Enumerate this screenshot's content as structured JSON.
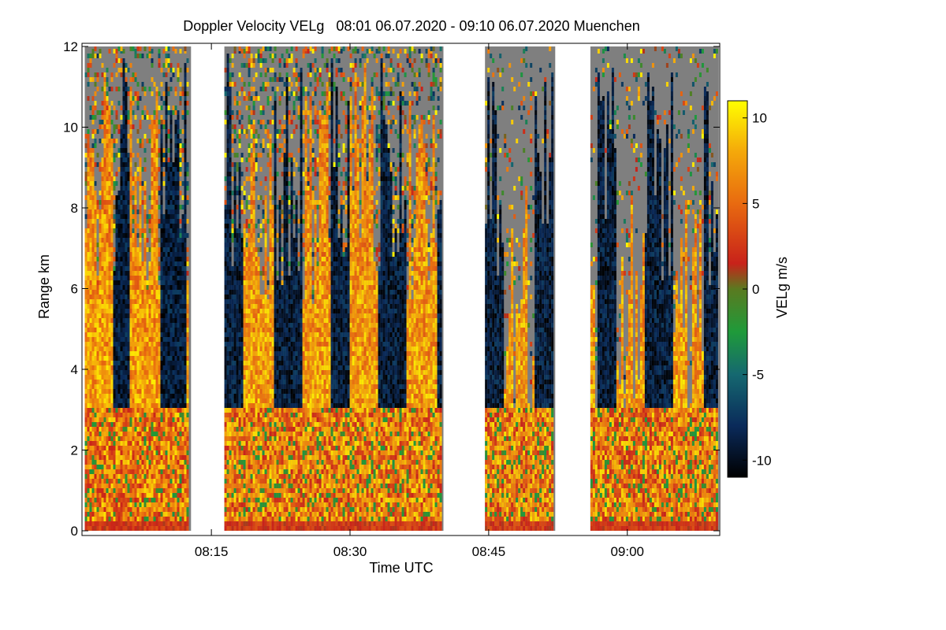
{
  "chart_data": {
    "type": "heatmap",
    "title": "Doppler Velocity VELg   08:01 06.07.2020 - 09:10 06.07.2020 Muenchen",
    "xlabel": "Time UTC",
    "ylabel": "Range km",
    "x_range_minutes_utc": [
      481,
      550
    ],
    "y_range_km": [
      0,
      12
    ],
    "x_ticks": [
      {
        "minute": 495,
        "label": "08:15"
      },
      {
        "minute": 510,
        "label": "08:30"
      },
      {
        "minute": 525,
        "label": "08:45"
      },
      {
        "minute": 540,
        "label": "09:00"
      }
    ],
    "y_ticks": [
      {
        "value": 0,
        "label": "0"
      },
      {
        "value": 2,
        "label": "2"
      },
      {
        "value": 4,
        "label": "4"
      },
      {
        "value": 6,
        "label": "6"
      },
      {
        "value": 8,
        "label": "8"
      },
      {
        "value": 10,
        "label": "10"
      },
      {
        "value": 12,
        "label": "12"
      }
    ],
    "data_blocks_minutes": [
      [
        481.3,
        492.8
      ],
      [
        496.4,
        520.1
      ],
      [
        524.6,
        532.2
      ],
      [
        536.0,
        549.9
      ]
    ],
    "description_of_pattern": "Alternating positive (yellow/orange) and negative (blue) velocity streaks; reds/greens near ground below 3 km; grey noise aloft",
    "colorbar": {
      "label": "VELg m/s",
      "range": [
        -11,
        11
      ],
      "ticks": [
        {
          "value": 10,
          "label": "10"
        },
        {
          "value": 5,
          "label": "5"
        },
        {
          "value": 0,
          "label": "0"
        },
        {
          "value": -5,
          "label": "-5"
        },
        {
          "value": -10,
          "label": "-10"
        }
      ],
      "stops": [
        {
          "v": -11,
          "color": "#000000"
        },
        {
          "v": -8,
          "color": "#0a2a5a"
        },
        {
          "v": -5,
          "color": "#156870"
        },
        {
          "v": -2.5,
          "color": "#1f9a3a"
        },
        {
          "v": 0,
          "color": "#5a7a20"
        },
        {
          "v": 1.5,
          "color": "#c8221a"
        },
        {
          "v": 5,
          "color": "#e86a10"
        },
        {
          "v": 8,
          "color": "#f4a80a"
        },
        {
          "v": 11,
          "color": "#ffff00"
        }
      ]
    },
    "noise_color": "#7f7f7f"
  }
}
